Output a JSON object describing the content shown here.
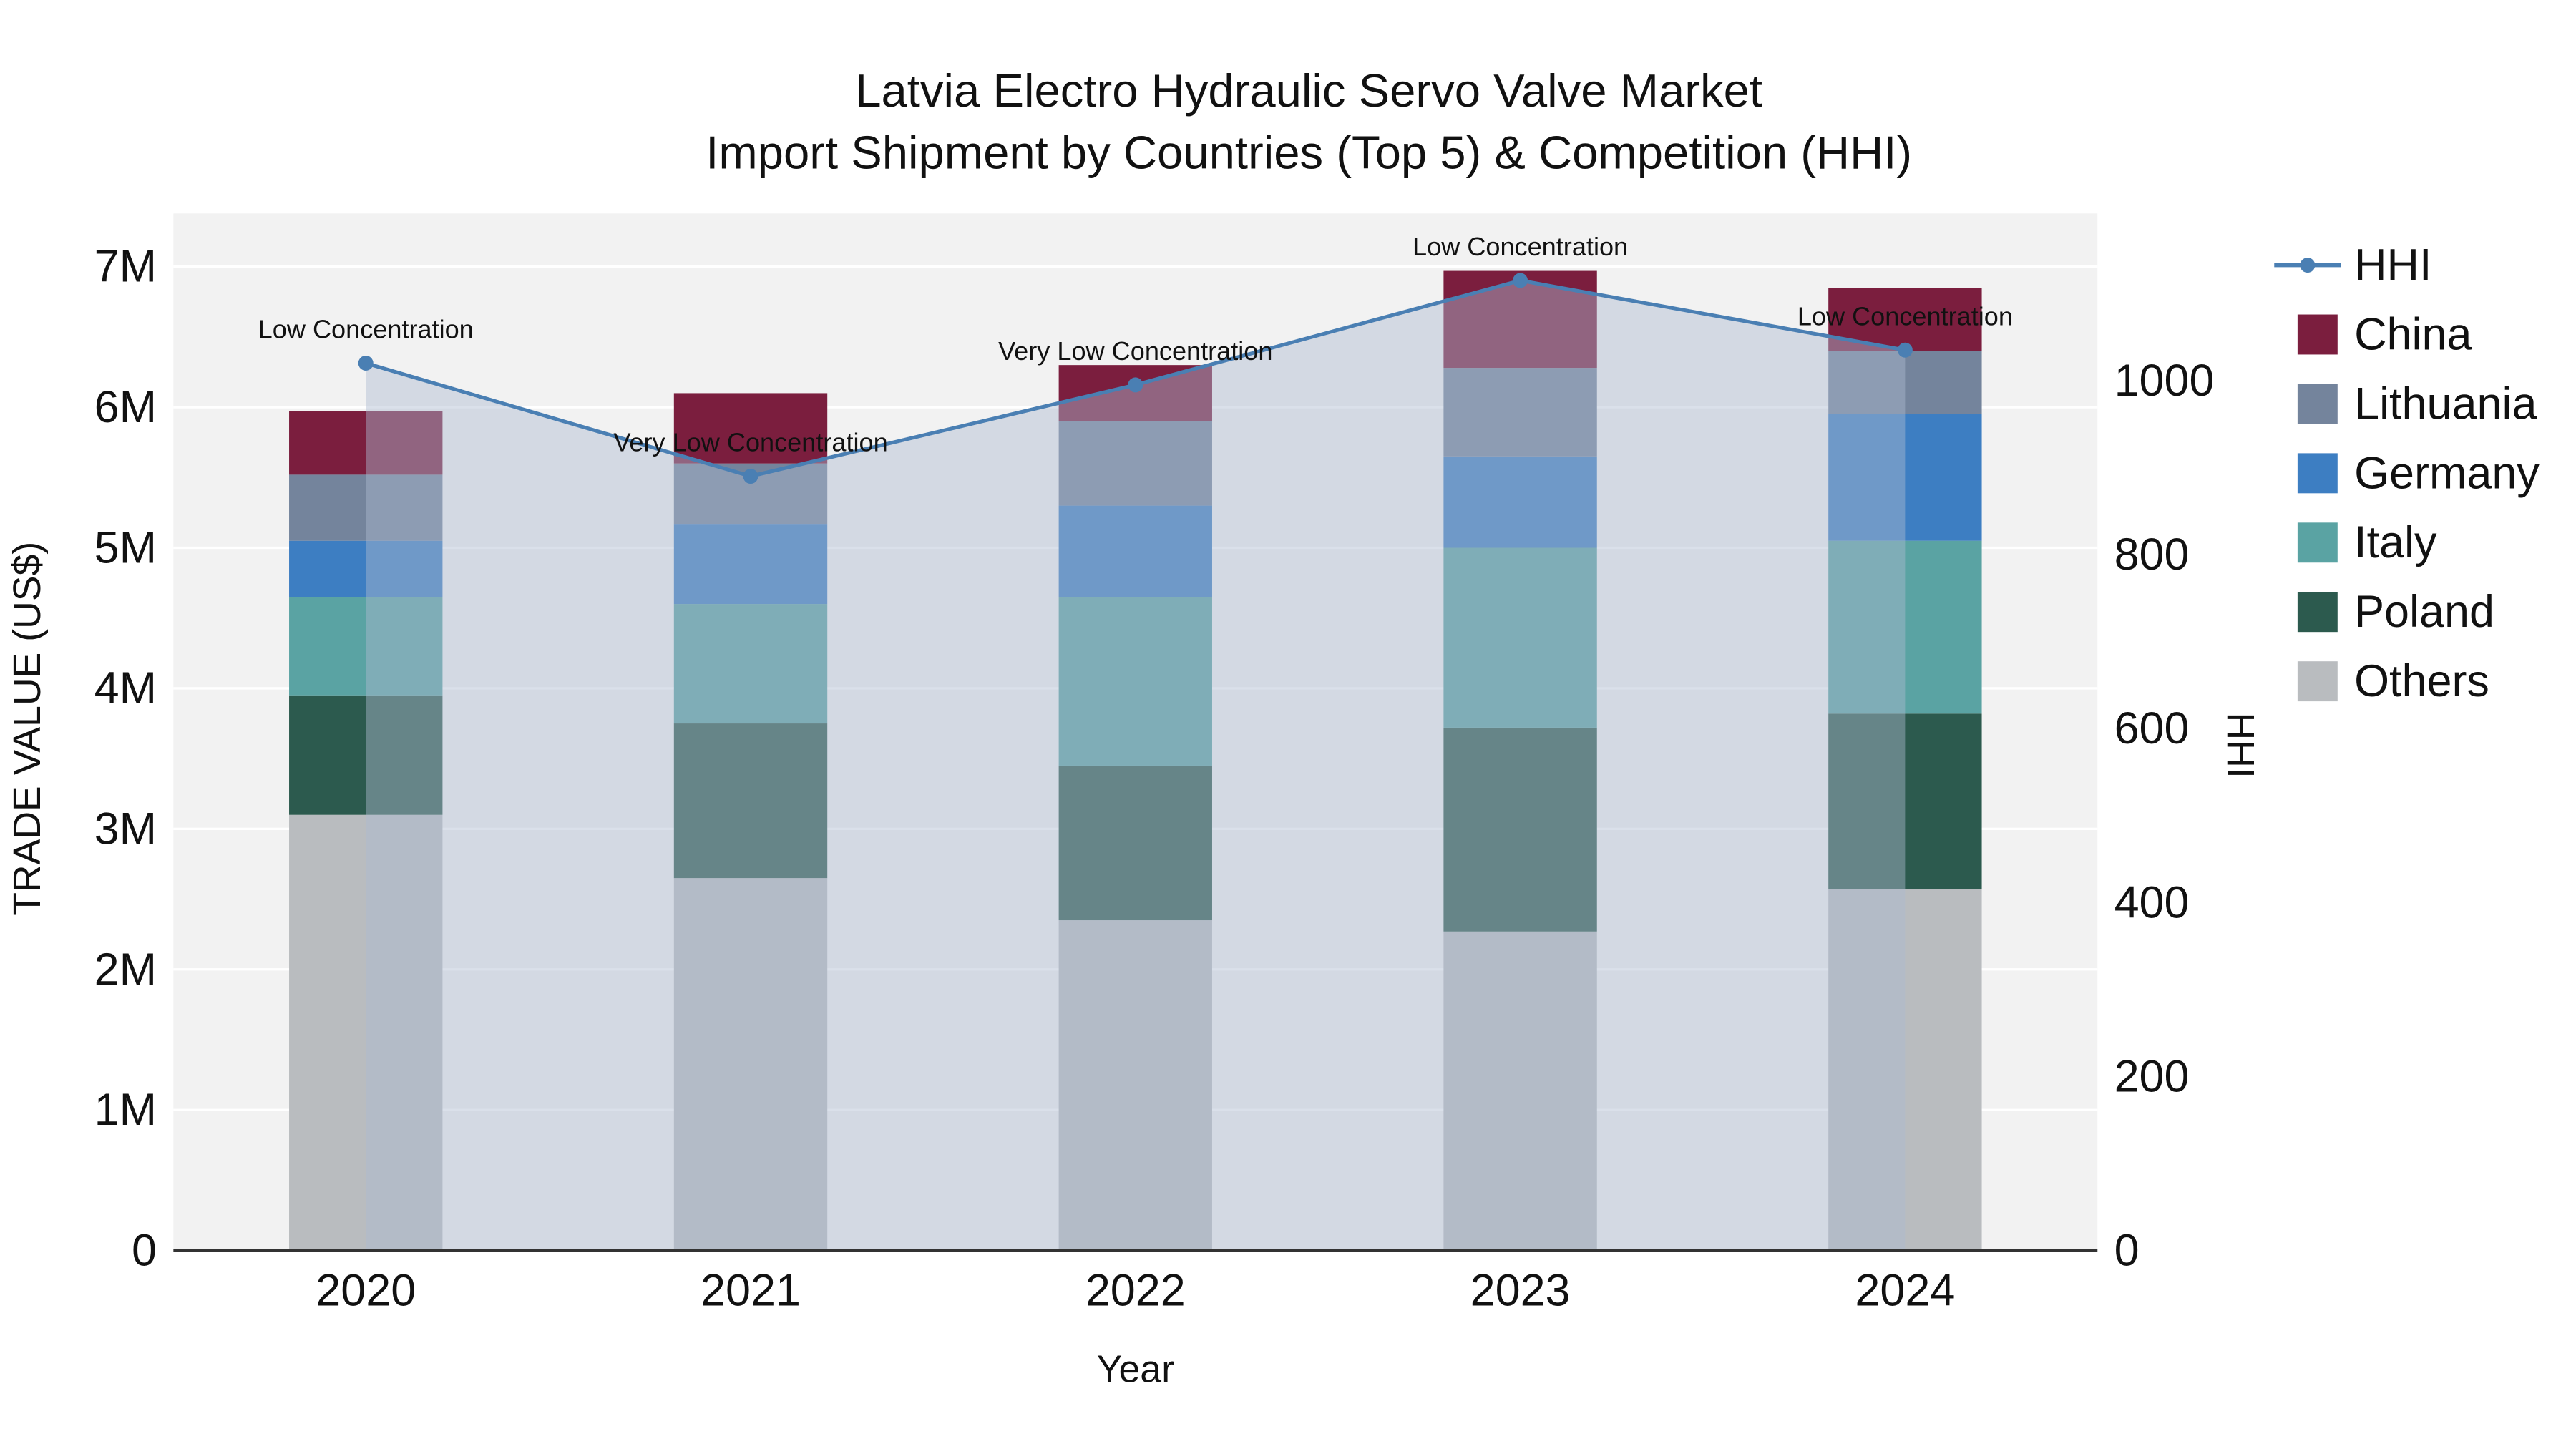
{
  "chart_data": {
    "type": "bar",
    "subtype": "stacked-bar-with-line-overlay",
    "title_line1": "Latvia Electro Hydraulic Servo Valve Market",
    "title_line2": "Import Shipment by Countries (Top 5) & Competition (HHI)",
    "xlabel": "Year",
    "ylabel_left": "TRADE VALUE (US$)",
    "ylabel_right": "HHI",
    "value_unit": "M US$",
    "categories": [
      "2020",
      "2021",
      "2022",
      "2023",
      "2024"
    ],
    "stack_order_bottom_to_top": [
      "Others",
      "Poland",
      "Italy",
      "Germany",
      "Lithuania",
      "China"
    ],
    "series": [
      {
        "name": "China",
        "color": "#7b1e3e",
        "values": [
          0.45,
          0.5,
          0.4,
          0.69,
          0.45
        ]
      },
      {
        "name": "Lithuania",
        "color": "#74849c",
        "values": [
          0.47,
          0.43,
          0.6,
          0.63,
          0.45
        ]
      },
      {
        "name": "Germany",
        "color": "#3d7ec2",
        "values": [
          0.4,
          0.57,
          0.65,
          0.65,
          0.9
        ]
      },
      {
        "name": "Italy",
        "color": "#5aa3a3",
        "values": [
          0.7,
          0.85,
          1.2,
          1.28,
          1.23
        ]
      },
      {
        "name": "Poland",
        "color": "#2c5a4e",
        "values": [
          0.85,
          1.1,
          1.1,
          1.45,
          1.25
        ]
      },
      {
        "name": "Others",
        "color": "#b9bcbf",
        "values": [
          3.1,
          2.65,
          2.35,
          2.27,
          2.57
        ]
      }
    ],
    "totals_m": [
      5.97,
      6.1,
      6.3,
      6.97,
      6.85
    ],
    "hhi": {
      "name": "HHI",
      "color": "#4a7fb3",
      "fill": "rgba(174,187,208,0.45)",
      "values": [
        1020,
        890,
        995,
        1115,
        1035
      ]
    },
    "annotations": [
      "Low Concentration",
      "Very Low Concentration",
      "Very Low Concentration",
      "Low Concentration",
      "Low Concentration"
    ],
    "y_left": {
      "ticks": [
        "0",
        "1M",
        "2M",
        "3M",
        "4M",
        "5M",
        "6M",
        "7M"
      ],
      "tick_values_m": [
        0,
        1,
        2,
        3,
        4,
        5,
        6,
        7
      ]
    },
    "y_right": {
      "ticks": [
        "0",
        "200",
        "400",
        "600",
        "800",
        "1000"
      ],
      "tick_values": [
        0,
        200,
        400,
        600,
        800,
        1000
      ]
    },
    "legend": [
      "HHI",
      "China",
      "Lithuania",
      "Germany",
      "Italy",
      "Poland",
      "Others"
    ],
    "grid": "on",
    "legend_position": "right",
    "plot_background": "#f2f2f2"
  }
}
